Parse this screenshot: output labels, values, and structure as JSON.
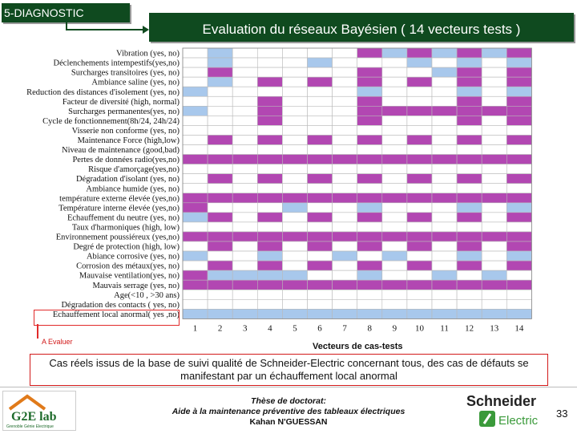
{
  "header": {
    "section_tag": "5-DIAGNOSTIC",
    "title": "Evaluation du réseaux Bayésien ( 14 vecteurs tests )"
  },
  "colors": {
    "banner": "#0f4a1f",
    "state_purple": "#b247b2",
    "state_blue": "#a8c8ec",
    "state_empty": "#ffffff",
    "highlight": "#e12a2a"
  },
  "matrix": {
    "axis_label": "Vecteurs de cas-tests",
    "eval_label": "A Evaluer",
    "columns": [
      "1",
      "2",
      "3",
      "4",
      "5",
      "6",
      "7",
      "8",
      "9",
      "10",
      "11",
      "12",
      "13",
      "14"
    ],
    "legend_note": "cell states: P = purple, B = blue, W = white",
    "rows": [
      {
        "label": "Vibration (yes, no)",
        "cells": "WBWWWWWPBPBPBP"
      },
      {
        "label": "Déclenchements intempestifs(yes,no)",
        "cells": "WBWWWBWWWBWBWB"
      },
      {
        "label": "Surcharges transitoires (yes, no)",
        "cells": "WPWWWWWPWWBPWP"
      },
      {
        "label": "Ambiance saline (yes, no)",
        "cells": "WBWPWPWPWPWPWP"
      },
      {
        "label": "Reduction des distances d'isolement (yes, no)",
        "cells": "BWWWWWWBWWWBWB"
      },
      {
        "label": "Facteur de diversité (high, normal)",
        "cells": "WWWPWWWPWWWPWP"
      },
      {
        "label": "Surcharges permanentes(yes, no)",
        "cells": "BWWPWWWPPPPPPP"
      },
      {
        "label": "Cycle de fonctionnement(8h/24, 24h/24)",
        "cells": "WWWPWWWPWWWPWP"
      },
      {
        "label": "Visserie non conforme (yes, no)",
        "cells": "WWWWWWWWWWWWWW"
      },
      {
        "label": "Maintenance Force (high,low)",
        "cells": "WPWPWPWPWPWPWP"
      },
      {
        "label": "Niveau de maintenance (good,bad)",
        "cells": "WWWWWWWWWWWWWW"
      },
      {
        "label": "Pertes de données radio(yes,no)",
        "cells": "PPPPPPPPPPPPPP"
      },
      {
        "label": "Risque d'amorçage(yes,no)",
        "cells": "WWWWWWWWWWWWWW"
      },
      {
        "label": "Dégradation d'isolant (yes, no)",
        "cells": "WPWPWPWPWPWPWP"
      },
      {
        "label": "Ambiance humide (yes, no)",
        "cells": "WWWWWWWWWWWWWW"
      },
      {
        "label": "température externe élevée (yes,no)",
        "cells": "PPPPPPPPPPPPPP"
      },
      {
        "label": "Température interne élevée (yes,no)",
        "cells": "PWWWBWWBWWWBWB"
      },
      {
        "label": "Echauffement du neutre (yes, no)",
        "cells": "BPWPWPWPWPWPWP"
      },
      {
        "label": "Taux d'harmoniques (high, low)",
        "cells": "WWWWWWWWWWWWWW"
      },
      {
        "label": "Environnement poussiéreux (yes,no)",
        "cells": "PPPPPPPPPPPPPP"
      },
      {
        "label": "Degré de protection (high, low)",
        "cells": "WPWPWPWPWPWPWP"
      },
      {
        "label": "Abiance corrosive (yes, no)",
        "cells": "BWWBWWBWBWWBWB"
      },
      {
        "label": "Corrosion des métaux(yes, no)",
        "cells": "WPWPWPWPWPWPWP"
      },
      {
        "label": "Mauvaise ventilation(yes, no)",
        "cells": "PBBBBWWBWWBWBW"
      },
      {
        "label": "Mauvais serrage (yes, no)",
        "cells": "PPPPPPPPPPPPPP"
      },
      {
        "label": "Age(<10 , >30 ans)",
        "cells": "WWWWWWWWWWWWWW"
      },
      {
        "label": "Dégradation des contacts ( yes, no)",
        "cells": "WWWWWWWWWWWWWW"
      },
      {
        "label": "Echauffement local anormal( yes ,no)",
        "cells": "BBBBBBBBBBBBBB"
      }
    ]
  },
  "caption": "Cas réels issus de la base de suivi qualité de Schneider-Electric concernant tous, des cas de défauts se manifestant par un échauffement local anormal",
  "footer": {
    "thesis_line1": "Thèse de doctorat:",
    "thesis_line2": "Aide à la maintenance préventive des tableaux électriques",
    "author": "Kahan N'GUESSAN",
    "logo_left_text": "G2E lab",
    "logo_left_sub": "Grenoble Génie Electrique",
    "logo_right_line1": "Schneider",
    "logo_right_line2": "Electric",
    "page_number": "33"
  }
}
